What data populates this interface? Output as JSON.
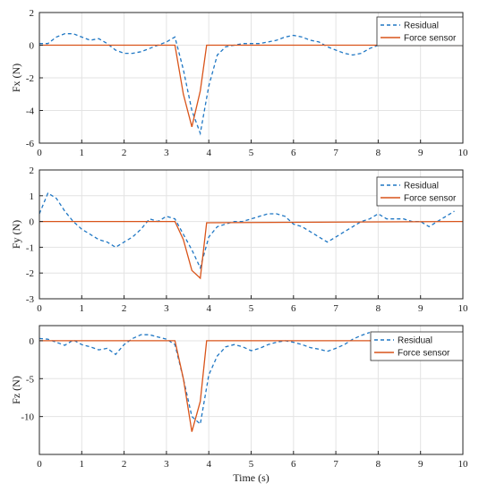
{
  "chart_data": [
    {
      "type": "line",
      "title": "",
      "xlabel": "",
      "ylabel": "Fx (N)",
      "xlim": [
        0,
        10
      ],
      "ylim": [
        -6,
        2
      ],
      "xticks": [
        0,
        1,
        2,
        3,
        4,
        5,
        6,
        7,
        8,
        9,
        10
      ],
      "yticks": [
        2,
        0,
        -2,
        -4,
        -6
      ],
      "grid": true,
      "legend": "top-right",
      "series": [
        {
          "name": "Residual",
          "style": "dashed",
          "color": "#1f77c4",
          "x": [
            0,
            0.2,
            0.4,
            0.6,
            0.8,
            1.0,
            1.2,
            1.4,
            1.6,
            1.8,
            2.0,
            2.2,
            2.4,
            2.6,
            2.8,
            3.0,
            3.2,
            3.4,
            3.6,
            3.8,
            4.0,
            4.2,
            4.4,
            4.6,
            4.8,
            5.0,
            5.2,
            5.4,
            5.6,
            5.8,
            6.0,
            6.2,
            6.4,
            6.6,
            6.8,
            7.0,
            7.2,
            7.4,
            7.6,
            7.8,
            8.0
          ],
          "y": [
            0.1,
            0.1,
            0.5,
            0.7,
            0.7,
            0.5,
            0.3,
            0.4,
            0.1,
            -0.3,
            -0.5,
            -0.5,
            -0.4,
            -0.2,
            0.0,
            0.2,
            0.5,
            -1.5,
            -4.0,
            -5.4,
            -2.5,
            -0.6,
            -0.1,
            0.0,
            0.1,
            0.1,
            0.1,
            0.2,
            0.3,
            0.5,
            0.6,
            0.5,
            0.3,
            0.2,
            -0.1,
            -0.3,
            -0.5,
            -0.6,
            -0.5,
            -0.2,
            0.0
          ]
        },
        {
          "name": "Force sensor",
          "style": "solid",
          "color": "#d9541a",
          "x": [
            0,
            3.2,
            3.4,
            3.6,
            3.8,
            3.95,
            10
          ],
          "y": [
            0,
            0,
            -3.0,
            -5.0,
            -2.8,
            0,
            0
          ]
        }
      ]
    },
    {
      "type": "line",
      "title": "",
      "xlabel": "",
      "ylabel": "Fy (N)",
      "xlim": [
        0,
        10
      ],
      "ylim": [
        -3,
        2
      ],
      "xticks": [
        0,
        1,
        2,
        3,
        4,
        5,
        6,
        7,
        8,
        9,
        10
      ],
      "yticks": [
        2,
        1,
        0,
        -1,
        -2,
        -3
      ],
      "grid": true,
      "legend": "top-right",
      "series": [
        {
          "name": "Residual",
          "style": "dashed",
          "color": "#1f77c4",
          "x": [
            0,
            0.2,
            0.4,
            0.6,
            0.8,
            1.0,
            1.2,
            1.4,
            1.6,
            1.8,
            2.0,
            2.2,
            2.4,
            2.6,
            2.8,
            3.0,
            3.2,
            3.4,
            3.6,
            3.8,
            4.0,
            4.2,
            4.4,
            4.6,
            4.8,
            5.0,
            5.2,
            5.4,
            5.6,
            5.8,
            6.0,
            6.2,
            6.4,
            6.6,
            6.8,
            7.0,
            7.2,
            7.4,
            7.6,
            7.8,
            8.0,
            8.2,
            8.4,
            8.6,
            8.8,
            9.0,
            9.2,
            9.4,
            9.6,
            9.8
          ],
          "y": [
            0.3,
            1.1,
            0.9,
            0.4,
            0.0,
            -0.3,
            -0.5,
            -0.7,
            -0.8,
            -1.0,
            -0.8,
            -0.6,
            -0.3,
            0.1,
            0.0,
            0.2,
            0.1,
            -0.5,
            -1.1,
            -1.8,
            -0.6,
            -0.2,
            -0.1,
            0.0,
            0.0,
            0.1,
            0.2,
            0.3,
            0.3,
            0.2,
            -0.1,
            -0.2,
            -0.4,
            -0.6,
            -0.8,
            -0.6,
            -0.4,
            -0.2,
            0.0,
            0.1,
            0.3,
            0.1,
            0.1,
            0.1,
            0.0,
            0.0,
            -0.2,
            0.0,
            0.2,
            0.4
          ]
        },
        {
          "name": "Force sensor",
          "style": "solid",
          "color": "#d9541a",
          "x": [
            0,
            3.2,
            3.4,
            3.6,
            3.8,
            3.95,
            10
          ],
          "y": [
            0,
            0,
            -0.7,
            -1.9,
            -2.2,
            -0.05,
            0
          ]
        }
      ]
    },
    {
      "type": "line",
      "title": "",
      "xlabel": "Time (s)",
      "ylabel": "Fz (N)",
      "xlim": [
        0,
        10
      ],
      "ylim": [
        -15,
        2
      ],
      "xticks": [
        0,
        1,
        2,
        3,
        4,
        5,
        6,
        7,
        8,
        9,
        10
      ],
      "yticks": [
        0,
        -5,
        -10
      ],
      "grid": true,
      "legend": "top-right",
      "series": [
        {
          "name": "Residual",
          "style": "dashed",
          "color": "#1f77c4",
          "x": [
            0,
            0.2,
            0.4,
            0.6,
            0.8,
            1.0,
            1.2,
            1.4,
            1.6,
            1.8,
            2.0,
            2.2,
            2.4,
            2.6,
            2.8,
            3.0,
            3.2,
            3.4,
            3.6,
            3.8,
            4.0,
            4.2,
            4.4,
            4.6,
            4.8,
            5.0,
            5.2,
            5.4,
            5.6,
            5.8,
            6.0,
            6.2,
            6.4,
            6.6,
            6.8,
            7.0,
            7.2,
            7.4,
            7.6,
            7.8
          ],
          "y": [
            0.3,
            0.2,
            -0.2,
            -0.6,
            0.1,
            -0.5,
            -0.8,
            -1.2,
            -1.0,
            -1.8,
            -0.5,
            0.3,
            0.8,
            0.8,
            0.5,
            0.2,
            -0.5,
            -5.0,
            -10.0,
            -11.0,
            -4.5,
            -2.0,
            -0.8,
            -0.5,
            -0.8,
            -1.3,
            -1.0,
            -0.5,
            -0.2,
            0.0,
            -0.2,
            -0.5,
            -0.9,
            -1.1,
            -1.4,
            -1.0,
            -0.5,
            0.2,
            0.7,
            1.1
          ]
        },
        {
          "name": "Force sensor",
          "style": "solid",
          "color": "#d9541a",
          "x": [
            0,
            3.2,
            3.4,
            3.6,
            3.8,
            3.95,
            10
          ],
          "y": [
            0,
            0,
            -5.0,
            -12.0,
            -8.0,
            0,
            0
          ]
        }
      ]
    }
  ]
}
